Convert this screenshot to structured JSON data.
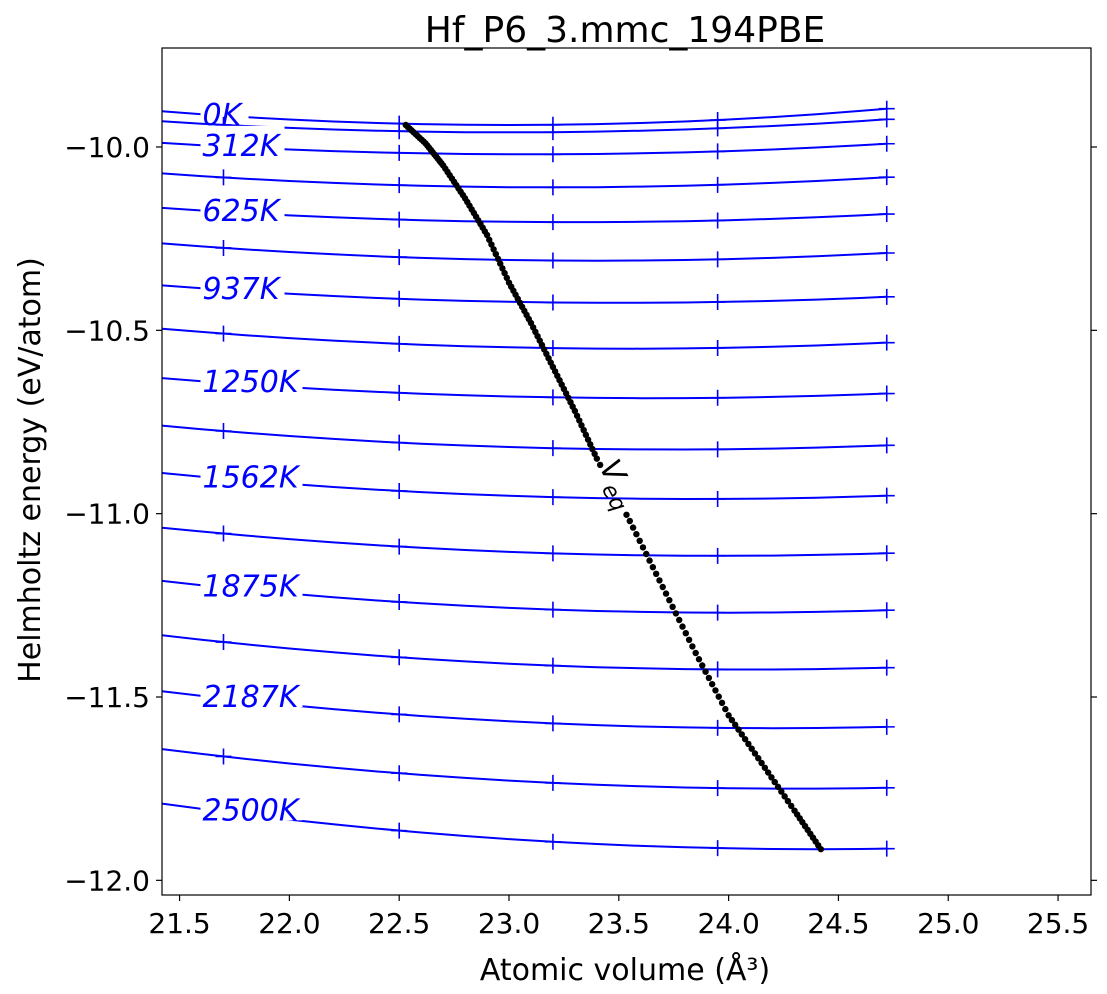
{
  "chart_data": {
    "type": "line",
    "title": "Hf_P6_3.mmc_194PBE",
    "xlabel": "Atomic volume (Å³)",
    "ylabel": "Helmholtz energy (eV/atom)",
    "xlim": [
      21.42,
      25.65
    ],
    "ylim": [
      -12.04,
      -9.73
    ],
    "x_ticks": [
      21.5,
      22.0,
      22.5,
      23.0,
      23.5,
      24.0,
      24.5,
      25.0,
      25.5
    ],
    "x_tick_labels": [
      "21.5",
      "22.0",
      "22.5",
      "23.0",
      "23.5",
      "24.0",
      "24.5",
      "25.0",
      "25.5"
    ],
    "y_ticks": [
      -10.0,
      -10.5,
      -11.0,
      -11.5,
      -12.0
    ],
    "y_tick_labels": [
      "−10.0",
      "−10.5",
      "−11.0",
      "−11.5",
      "−12.0"
    ],
    "grid": false,
    "x_samples": [
      21.42,
      21.6,
      21.8,
      22.0,
      22.2,
      22.4,
      22.6,
      22.8,
      23.0,
      23.2,
      23.4,
      23.6,
      23.8,
      24.0,
      24.2,
      24.4,
      24.6,
      24.72
    ],
    "marker_x": [
      21.7,
      22.5,
      23.2,
      23.95,
      24.72
    ],
    "series": [
      {
        "name": "0K",
        "v0": 23.0,
        "f0": -9.94,
        "a": 0.015
      },
      {
        "name": "",
        "v0": 23.0,
        "f0": -9.96,
        "a": 0.012
      },
      {
        "name": "312K",
        "v0": 23.1,
        "f0": -10.02,
        "a": 0.011
      },
      {
        "name": "",
        "v0": 23.2,
        "f0": -10.11,
        "a": 0.012
      },
      {
        "name": "625K",
        "v0": 23.3,
        "f0": -10.205,
        "a": 0.011
      },
      {
        "name": "",
        "v0": 23.4,
        "f0": -10.31,
        "a": 0.012
      },
      {
        "name": "937K",
        "v0": 23.5,
        "f0": -10.425,
        "a": 0.011
      },
      {
        "name": "",
        "v0": 23.55,
        "f0": -10.55,
        "a": 0.012
      },
      {
        "name": "1250K",
        "v0": 23.65,
        "f0": -10.685,
        "a": 0.011
      },
      {
        "name": "",
        "v0": 23.75,
        "f0": -10.825,
        "a": 0.012
      },
      {
        "name": "1562K",
        "v0": 23.85,
        "f0": -10.96,
        "a": 0.012
      },
      {
        "name": "",
        "v0": 23.95,
        "f0": -11.115,
        "a": 0.012
      },
      {
        "name": "1875K",
        "v0": 24.0,
        "f0": -11.27,
        "a": 0.013
      },
      {
        "name": "",
        "v0": 24.1,
        "f0": -11.425,
        "a": 0.013
      },
      {
        "name": "2187K",
        "v0": 24.2,
        "f0": -11.585,
        "a": 0.013
      },
      {
        "name": "",
        "v0": 24.3,
        "f0": -11.75,
        "a": 0.013
      },
      {
        "name": "2500K",
        "v0": 24.4,
        "f0": -11.915,
        "a": 0.014
      }
    ],
    "veq": {
      "label": "V",
      "subscript": "eq",
      "points": [
        [
          22.53,
          -9.94
        ],
        [
          22.62,
          -9.99
        ],
        [
          22.7,
          -10.05
        ],
        [
          22.8,
          -10.14
        ],
        [
          22.9,
          -10.24
        ],
        [
          23.0,
          -10.37
        ],
        [
          23.1,
          -10.48
        ],
        [
          23.2,
          -10.6
        ],
        [
          23.3,
          -10.72
        ],
        [
          23.4,
          -10.85
        ],
        [
          23.55,
          -11.02
        ],
        [
          23.7,
          -11.2
        ],
        [
          23.85,
          -11.38
        ],
        [
          24.0,
          -11.55
        ],
        [
          24.15,
          -11.68
        ],
        [
          24.3,
          -11.81
        ],
        [
          24.42,
          -11.915
        ]
      ]
    }
  }
}
